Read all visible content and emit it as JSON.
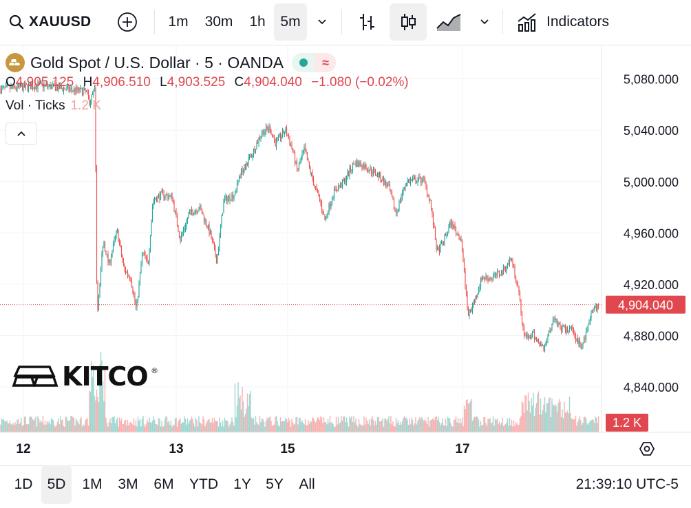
{
  "toolbar": {
    "symbol": "XAUUSD",
    "intervals": [
      "1m",
      "30m",
      "1h",
      "5m"
    ],
    "active_interval": "5m",
    "indicators_label": "Indicators"
  },
  "legend": {
    "title": "Gold Spot / U.S. Dollar · 5 · OANDA",
    "open_label": "O",
    "open": "4,905.125",
    "high_label": "H",
    "high": "4,906.510",
    "low_label": "L",
    "low": "4,903.525",
    "close_label": "C",
    "close": "4,904.040",
    "change": "−1.080 (−0.02%)",
    "volume_label": "Vol · Ticks",
    "volume_value": "1.2 K"
  },
  "watermark": {
    "brand": "KITCO",
    "mark": "®"
  },
  "ranges": [
    "1D",
    "5D",
    "1M",
    "3M",
    "6M",
    "YTD",
    "1Y",
    "5Y",
    "All"
  ],
  "active_range": "5D",
  "clock": "21:39:10 UTC-5",
  "colors": {
    "up": "#26a69a",
    "down": "#ef5350",
    "price_tag": "#e0474e",
    "volume_tag": "#e0474e"
  },
  "chart_data": {
    "type": "candlestick",
    "interval": "5m",
    "x_ticks": [
      "12",
      "13",
      "15",
      "17"
    ],
    "y_ticks": [
      "5,080.000",
      "5,040.000",
      "5,000.000",
      "4,960.000",
      "4,920.000",
      "4,880.000",
      "4,840.000"
    ],
    "ylim": [
      4825,
      5090
    ],
    "last_price": 4904.04,
    "last_price_label": "4,904.040",
    "last_volume_label": "1.2 K",
    "price_path": [
      [
        0,
        5072
      ],
      [
        60,
        5075
      ],
      [
        125,
        5070
      ],
      [
        130,
        5062
      ],
      [
        138,
        5071
      ],
      [
        141,
        4895
      ],
      [
        150,
        4955
      ],
      [
        158,
        4935
      ],
      [
        170,
        4962
      ],
      [
        180,
        4932
      ],
      [
        190,
        4925
      ],
      [
        198,
        4900
      ],
      [
        207,
        4945
      ],
      [
        215,
        4935
      ],
      [
        222,
        4985
      ],
      [
        235,
        4990
      ],
      [
        250,
        4988
      ],
      [
        262,
        4955
      ],
      [
        275,
        4975
      ],
      [
        290,
        4980
      ],
      [
        305,
        4960
      ],
      [
        315,
        4938
      ],
      [
        325,
        4985
      ],
      [
        340,
        4990
      ],
      [
        352,
        5010
      ],
      [
        365,
        5020
      ],
      [
        380,
        5038
      ],
      [
        392,
        5042
      ],
      [
        400,
        5030
      ],
      [
        415,
        5040
      ],
      [
        425,
        5025
      ],
      [
        432,
        5008
      ],
      [
        442,
        5025
      ],
      [
        455,
        5000
      ],
      [
        465,
        4985
      ],
      [
        472,
        4970
      ],
      [
        485,
        4992
      ],
      [
        500,
        5000
      ],
      [
        515,
        5015
      ],
      [
        530,
        5012
      ],
      [
        550,
        5005
      ],
      [
        565,
        4995
      ],
      [
        575,
        4975
      ],
      [
        590,
        5000
      ],
      [
        615,
        5002
      ],
      [
        625,
        4985
      ],
      [
        635,
        4945
      ],
      [
        642,
        4950
      ],
      [
        655,
        4968
      ],
      [
        670,
        4955
      ],
      [
        680,
        4895
      ],
      [
        690,
        4908
      ],
      [
        700,
        4925
      ],
      [
        715,
        4925
      ],
      [
        730,
        4930
      ],
      [
        743,
        4940
      ],
      [
        752,
        4920
      ],
      [
        762,
        4878
      ],
      [
        775,
        4880
      ],
      [
        790,
        4870
      ],
      [
        805,
        4895
      ],
      [
        815,
        4885
      ],
      [
        830,
        4885
      ],
      [
        845,
        4870
      ],
      [
        858,
        4895
      ],
      [
        870,
        4904
      ]
    ]
  }
}
